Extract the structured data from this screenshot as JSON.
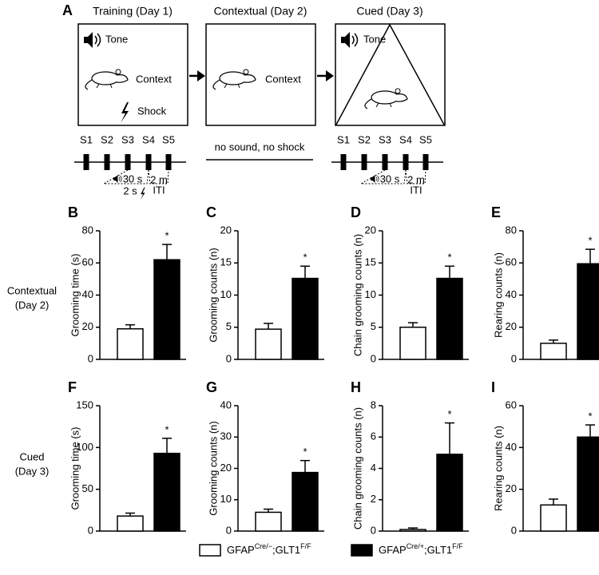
{
  "diagram": {
    "panel": "A",
    "stages": [
      {
        "title": "Training (Day 1)",
        "cues": [
          "Tone",
          "Context",
          "Shock"
        ]
      },
      {
        "title": "Contextual (Day 2)",
        "cues": [
          "Context"
        ],
        "note": "no sound, no shock"
      },
      {
        "title": "Cued (Day 3)",
        "cues": [
          "Tone"
        ]
      }
    ],
    "timeline": {
      "steps": [
        "S1",
        "S2",
        "S3",
        "S4",
        "S5"
      ],
      "tone": "30 s",
      "iti": [
        "2 m",
        "ITI"
      ],
      "shock": "2 s"
    }
  },
  "row_labels": [
    [
      "Contextual",
      "(Day 2)"
    ],
    [
      "Cued",
      "(Day 3)"
    ]
  ],
  "legend": [
    {
      "parts": [
        "GFAP",
        "Cre/−",
        ";GLT1",
        "F/F"
      ],
      "color": "#ffffff"
    },
    {
      "parts": [
        "GFAP",
        "Cre/+",
        ";GLT1",
        "F/F"
      ],
      "color": "#000000"
    }
  ],
  "chart_data": [
    {
      "type": "bar",
      "panel": "B",
      "y_label": "Grooming time (s)",
      "categories": [
        null,
        null
      ],
      "values": [
        19,
        62
      ],
      "errors": [
        2.5,
        9.5
      ],
      "colors": [
        "#ffffff",
        "#000000"
      ],
      "star": "*",
      "ylim": [
        0,
        80
      ],
      "yticks": [
        0,
        20,
        40,
        60,
        80
      ]
    },
    {
      "type": "bar",
      "panel": "C",
      "y_label": "Grooming counts (n)",
      "categories": [
        null,
        null
      ],
      "values": [
        4.7,
        12.6
      ],
      "errors": [
        0.9,
        1.9
      ],
      "colors": [
        "#ffffff",
        "#000000"
      ],
      "star": "*",
      "ylim": [
        0,
        20
      ],
      "yticks": [
        0,
        5,
        10,
        15,
        20
      ]
    },
    {
      "type": "bar",
      "panel": "D",
      "y_label": "Chain grooming counts (n)",
      "categories": [
        null,
        null
      ],
      "values": [
        5.0,
        12.6
      ],
      "errors": [
        0.7,
        1.9
      ],
      "colors": [
        "#ffffff",
        "#000000"
      ],
      "star": "*",
      "ylim": [
        0,
        20
      ],
      "yticks": [
        0,
        5,
        10,
        15,
        20
      ]
    },
    {
      "type": "bar",
      "panel": "E",
      "y_label": "Rearing counts (n)",
      "categories": [
        null,
        null
      ],
      "values": [
        10,
        59.5
      ],
      "errors": [
        2,
        9
      ],
      "colors": [
        "#ffffff",
        "#000000"
      ],
      "star": "*",
      "ylim": [
        0,
        80
      ],
      "yticks": [
        0,
        20,
        40,
        60,
        80
      ]
    },
    {
      "type": "bar",
      "panel": "F",
      "y_label": "Grooming time (s)",
      "categories": [
        null,
        null
      ],
      "values": [
        18,
        93
      ],
      "errors": [
        3.5,
        18
      ],
      "colors": [
        "#ffffff",
        "#000000"
      ],
      "star": "*",
      "ylim": [
        0,
        150
      ],
      "yticks": [
        0,
        50,
        100,
        150
      ]
    },
    {
      "type": "bar",
      "panel": "G",
      "y_label": "Grooming counts (n)",
      "categories": [
        null,
        null
      ],
      "values": [
        6,
        18.7
      ],
      "errors": [
        1,
        3.8
      ],
      "colors": [
        "#ffffff",
        "#000000"
      ],
      "star": "*",
      "ylim": [
        0,
        40
      ],
      "yticks": [
        0,
        10,
        20,
        30,
        40
      ]
    },
    {
      "type": "bar",
      "panel": "H",
      "y_label": "Chain grooming counts (n)",
      "categories": [
        null,
        null
      ],
      "values": [
        0.1,
        4.9
      ],
      "errors": [
        0.1,
        2.0
      ],
      "colors": [
        "#ffffff",
        "#000000"
      ],
      "star": "*",
      "ylim": [
        0,
        8
      ],
      "yticks": [
        0,
        2,
        4,
        6,
        8
      ]
    },
    {
      "type": "bar",
      "panel": "I",
      "y_label": "Rearing counts (n)",
      "categories": [
        null,
        null
      ],
      "values": [
        12.5,
        45
      ],
      "errors": [
        2.8,
        5.8
      ],
      "colors": [
        "#ffffff",
        "#000000"
      ],
      "star": "*",
      "ylim": [
        0,
        60
      ],
      "yticks": [
        0,
        20,
        40,
        60
      ]
    }
  ]
}
